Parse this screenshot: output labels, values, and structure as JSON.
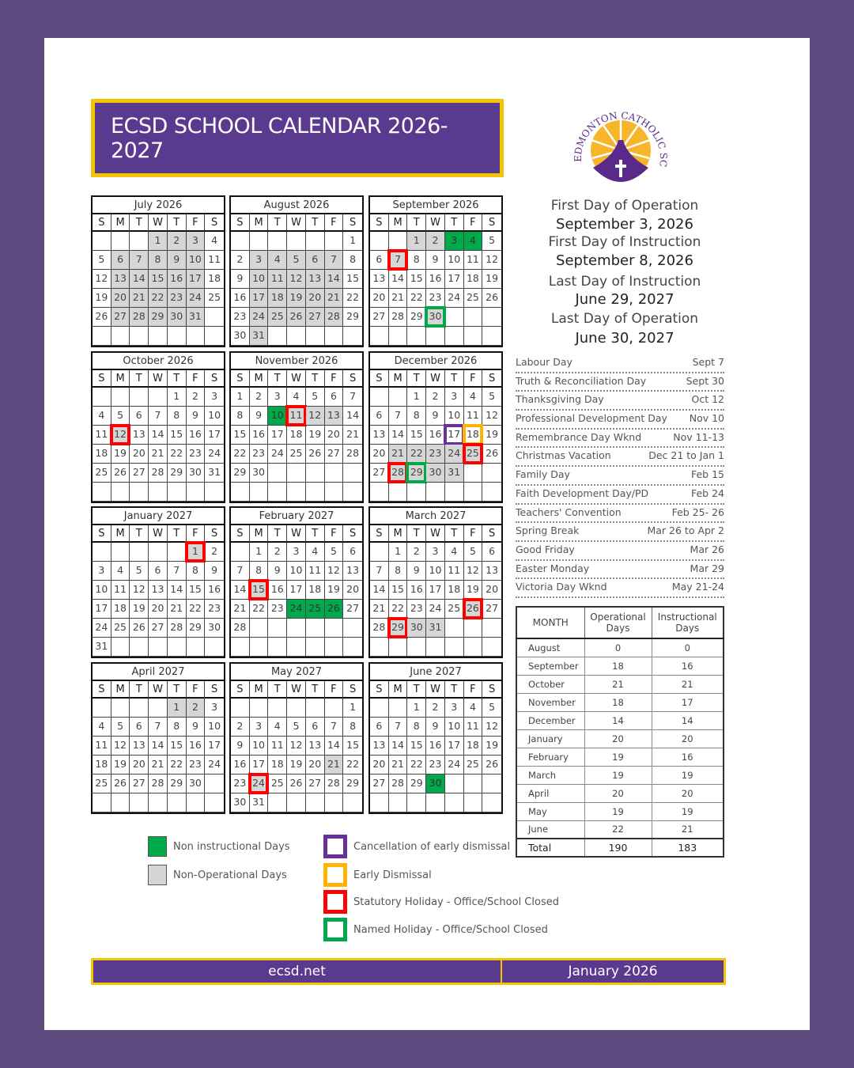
{
  "title": "ECSD SCHOOL CALENDAR 2026-2027",
  "logo_text": "EDMONTON CATHOLIC SCHOOLS",
  "colors": {
    "purple": "#5a3a8e",
    "gold": "#f5c400",
    "green": "#00a94a",
    "gray": "#d6d6d6",
    "red": "#ff0000",
    "legend_purple": "#6a2ea0",
    "legend_yellow": "#ffb400"
  },
  "weekdays": [
    "S",
    "M",
    "T",
    "W",
    "T",
    "F",
    "S"
  ],
  "months": [
    {
      "name": "July 2026",
      "start": 3,
      "days": 31,
      "gray": [
        1,
        2,
        3,
        6,
        7,
        8,
        9,
        10,
        13,
        14,
        15,
        16,
        17,
        20,
        21,
        22,
        23,
        24,
        27,
        28,
        29,
        30,
        31
      ],
      "green": [],
      "boxes": {}
    },
    {
      "name": "August 2026",
      "start": 6,
      "days": 31,
      "gray": [
        3,
        4,
        5,
        6,
        7,
        10,
        11,
        12,
        13,
        14,
        17,
        18,
        19,
        20,
        21,
        24,
        25,
        26,
        27,
        28,
        31
      ],
      "green": [],
      "boxes": {}
    },
    {
      "name": "September 2026",
      "start": 2,
      "days": 30,
      "gray": [
        1,
        2,
        7,
        30
      ],
      "green": [
        3,
        4
      ],
      "boxes": {
        "7": "red",
        "30": "green"
      }
    },
    {
      "name": "October 2026",
      "start": 4,
      "days": 31,
      "gray": [
        12
      ],
      "green": [],
      "boxes": {
        "12": "red"
      }
    },
    {
      "name": "November 2026",
      "start": 0,
      "days": 30,
      "gray": [
        11,
        12,
        13
      ],
      "green": [
        10
      ],
      "boxes": {
        "11": "red"
      }
    },
    {
      "name": "December 2026",
      "start": 2,
      "days": 31,
      "gray": [
        21,
        22,
        23,
        24,
        25,
        28,
        29,
        30,
        31
      ],
      "green": [],
      "boxes": {
        "17": "purple",
        "18": "yellow",
        "25": "red",
        "28": "red",
        "29": "green"
      }
    },
    {
      "name": "January 2027",
      "start": 5,
      "days": 31,
      "gray": [
        1
      ],
      "green": [],
      "boxes": {
        "1": "red"
      }
    },
    {
      "name": "February 2027",
      "start": 1,
      "days": 28,
      "gray": [
        15
      ],
      "green": [
        24,
        25,
        26
      ],
      "boxes": {
        "15": "red"
      }
    },
    {
      "name": "March 2027",
      "start": 1,
      "days": 31,
      "gray": [
        26,
        29,
        30,
        31
      ],
      "green": [],
      "boxes": {
        "26": "red",
        "29": "red"
      }
    },
    {
      "name": "April 2027",
      "start": 4,
      "days": 30,
      "gray": [
        1,
        2
      ],
      "green": [],
      "boxes": {}
    },
    {
      "name": "May 2027",
      "start": 6,
      "days": 31,
      "gray": [
        21,
        24
      ],
      "green": [],
      "boxes": {
        "24": "red"
      }
    },
    {
      "name": "June 2027",
      "start": 2,
      "days": 30,
      "gray": [],
      "green": [
        30
      ],
      "boxes": {}
    }
  ],
  "key_dates": [
    {
      "label": "First Day of Operation",
      "date": "September 3, 2026"
    },
    {
      "label": "First Day of Instruction",
      "date": "September 8, 2026"
    },
    {
      "label": "Last Day of Instruction",
      "date": "June 29, 2027"
    },
    {
      "label": "Last Day of Operation",
      "date": "June 30, 2027"
    }
  ],
  "events": [
    {
      "name": "Labour Day",
      "date": "Sept 7"
    },
    {
      "name": "Truth & Reconciliation Day",
      "date": "Sept 30"
    },
    {
      "name": "Thanksgiving Day",
      "date": "Oct 12"
    },
    {
      "name": "Professional Development Day",
      "date": "Nov 10"
    },
    {
      "name": "Remembrance Day Wknd",
      "date": "Nov 11-13"
    },
    {
      "name": "Christmas Vacation",
      "date": "Dec 21 to Jan 1"
    },
    {
      "name": "Family Day",
      "date": "Feb 15"
    },
    {
      "name": "Faith Development Day/PD",
      "date": "Feb 24"
    },
    {
      "name": "Teachers' Convention",
      "date": "Feb 25- 26"
    },
    {
      "name": "Spring Break",
      "date": "Mar 26 to Apr 2"
    },
    {
      "name": "Good Friday",
      "date": "Mar 26"
    },
    {
      "name": "Easter Monday",
      "date": "Mar 29"
    },
    {
      "name": "Victoria Day Wknd",
      "date": "May 21-24"
    }
  ],
  "stats": {
    "headers": {
      "month": "MONTH",
      "op1": "Operational",
      "op2": "Days",
      "in1": "Instructional",
      "in2": "Days"
    },
    "rows": [
      [
        "August",
        "0",
        "0"
      ],
      [
        "September",
        "18",
        "16"
      ],
      [
        "October",
        "21",
        "21"
      ],
      [
        "November",
        "18",
        "17"
      ],
      [
        "December",
        "14",
        "14"
      ],
      [
        "January",
        "20",
        "20"
      ],
      [
        "February",
        "19",
        "16"
      ],
      [
        "March",
        "19",
        "19"
      ],
      [
        "April",
        "20",
        "20"
      ],
      [
        "May",
        "19",
        "19"
      ],
      [
        "June",
        "22",
        "21"
      ]
    ],
    "total": [
      "Total",
      "190",
      "183"
    ]
  },
  "legend": {
    "non_instructional": "Non instructional Days",
    "non_operational": "Non-Operational Days",
    "cancellation": "Cancellation of early dismissal",
    "early": "Early Dismissal",
    "statutory": "Statutory Holiday - Office/School Closed",
    "named": "Named Holiday - Office/School Closed"
  },
  "footer": {
    "site": "ecsd.net",
    "date": "January 2026"
  }
}
